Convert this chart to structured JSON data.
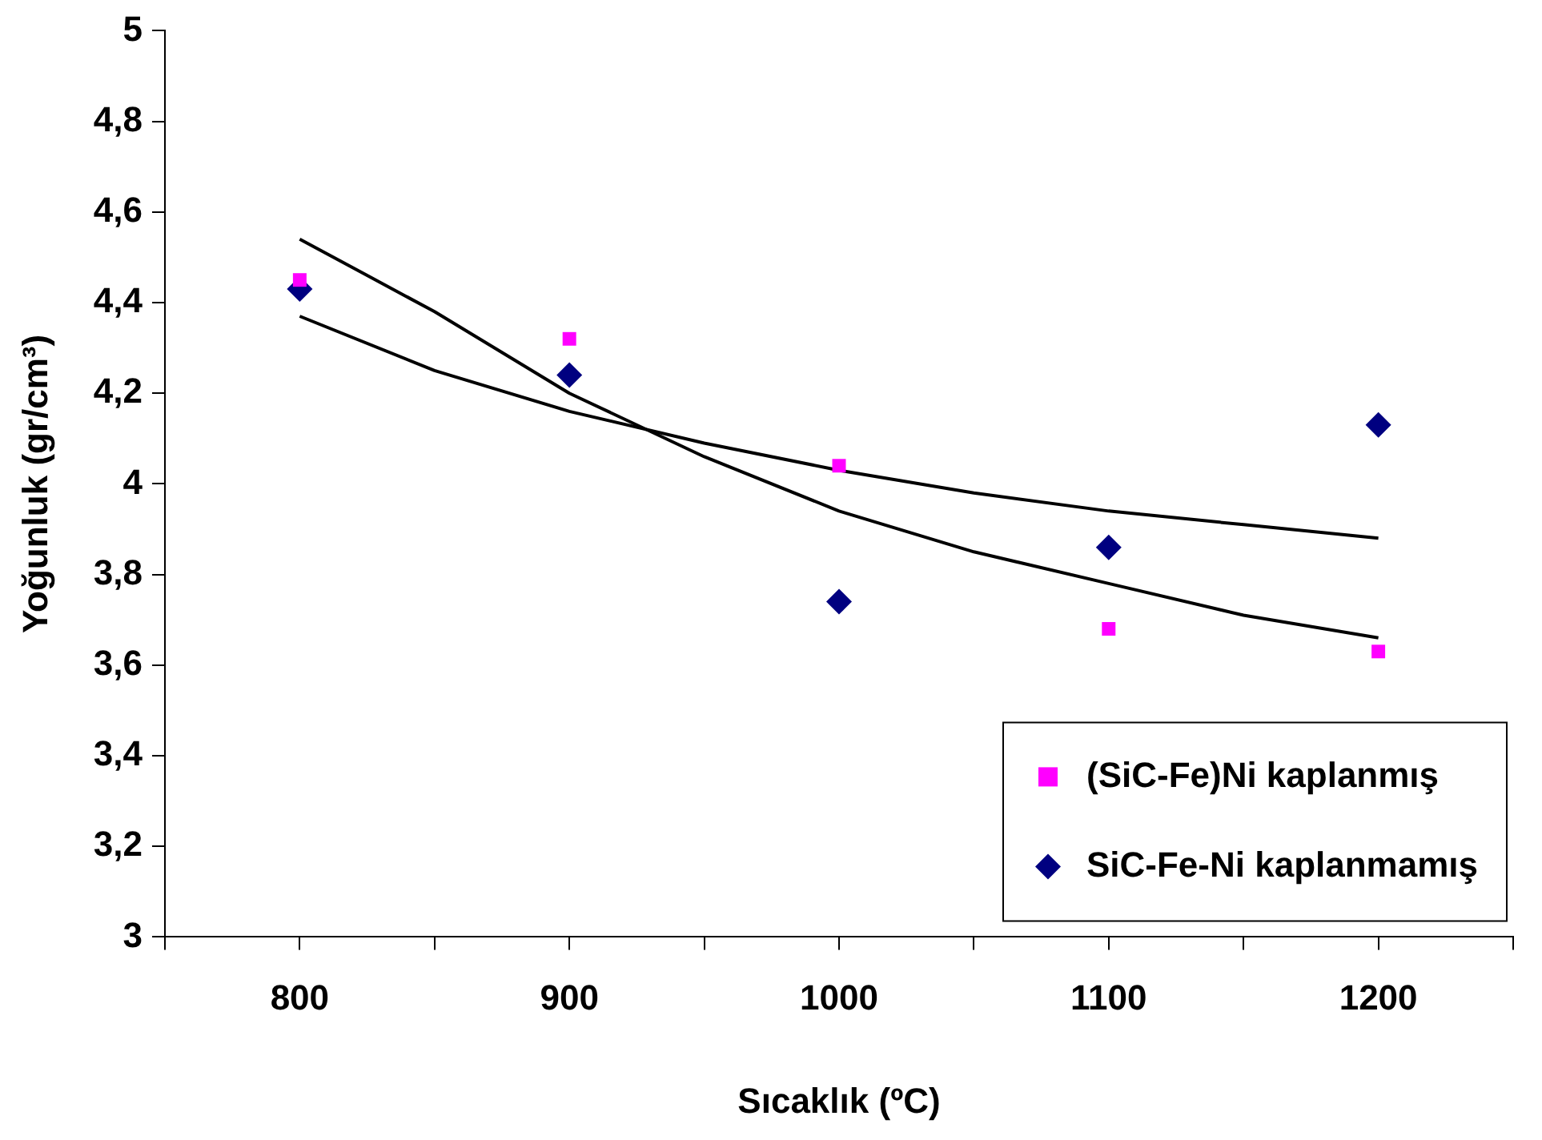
{
  "chart_data": {
    "type": "scatter",
    "xlabel": "Sıcaklık (ºC)",
    "ylabel": "Yoğunluk (gr/cm³)",
    "x": [
      800,
      900,
      1000,
      1100,
      1200
    ],
    "series": [
      {
        "name": "(SiC-Fe)Ni kaplanmış",
        "color": "#ff00ff",
        "marker": "square",
        "values": [
          4.45,
          4.32,
          4.04,
          3.68,
          3.63
        ]
      },
      {
        "name": "SiC-Fe-Ni kaplanmamış",
        "color": "#000080",
        "marker": "diamond",
        "values": [
          4.43,
          4.24,
          3.74,
          3.86,
          4.13
        ]
      },
      {
        "type": "line",
        "color": "#000000",
        "marker": "none",
        "x": [
          800,
          825,
          850,
          875,
          900,
          950,
          1000,
          1050,
          1100,
          1150,
          1200
        ],
        "values": [
          4.54,
          4.46,
          4.38,
          4.29,
          4.2,
          4.06,
          3.94,
          3.85,
          3.78,
          3.71,
          3.66
        ]
      },
      {
        "type": "line",
        "color": "#000000",
        "marker": "none",
        "x": [
          800,
          850,
          900,
          950,
          1000,
          1050,
          1100,
          1150,
          1200
        ],
        "values": [
          4.37,
          4.25,
          4.16,
          4.09,
          4.03,
          3.98,
          3.94,
          3.91,
          3.88
        ]
      }
    ],
    "xlim": [
      750,
      1250
    ],
    "xticks": [
      {
        "value": 750,
        "label": null
      },
      800,
      {
        "value": 850,
        "label": null
      },
      900,
      {
        "value": 950,
        "label": null
      },
      1000,
      {
        "value": 1050,
        "label": null
      },
      1100,
      {
        "value": 1150,
        "label": null
      },
      1200,
      {
        "value": 1250,
        "label": null
      }
    ],
    "ylim": [
      3,
      5
    ],
    "yticks": [
      {
        "value": 3,
        "label": "3"
      },
      {
        "value": 3.2,
        "label": "3,2"
      },
      {
        "value": 3.4,
        "label": "3,4"
      },
      {
        "value": 3.6,
        "label": "3,6"
      },
      {
        "value": 3.8,
        "label": "3,8"
      },
      {
        "value": 4,
        "label": "4"
      },
      {
        "value": 4.2,
        "label": "4,2"
      },
      {
        "value": 4.4,
        "label": "4,4"
      },
      {
        "value": 4.6,
        "label": "4,6"
      },
      {
        "value": 4.8,
        "label": "4,8"
      },
      {
        "value": 5,
        "label": "5"
      }
    ],
    "grid": false,
    "legend": "bottom right"
  }
}
